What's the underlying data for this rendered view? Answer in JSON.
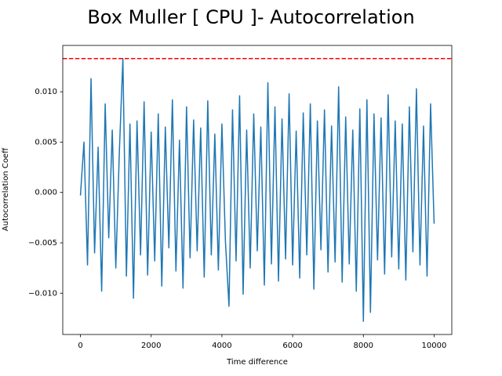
{
  "chart_data": {
    "type": "line",
    "title": "Box Muller [ CPU ]- Autocorrelation",
    "x_label": "Time difference",
    "y_label": "Autocorrelation Coeff",
    "x": [
      0,
      100,
      200,
      300,
      400,
      500,
      600,
      700,
      800,
      900,
      1000,
      1100,
      1200,
      1300,
      1400,
      1500,
      1600,
      1700,
      1800,
      1900,
      2000,
      2100,
      2200,
      2300,
      2400,
      2500,
      2600,
      2700,
      2800,
      2900,
      3000,
      3100,
      3200,
      3300,
      3400,
      3500,
      3600,
      3700,
      3800,
      3900,
      4000,
      4100,
      4200,
      4300,
      4400,
      4500,
      4600,
      4700,
      4800,
      4900,
      5000,
      5100,
      5200,
      5300,
      5400,
      5500,
      5600,
      5700,
      5800,
      5900,
      6000,
      6100,
      6200,
      6300,
      6400,
      6500,
      6600,
      6700,
      6800,
      6900,
      7000,
      7100,
      7200,
      7300,
      7400,
      7500,
      7600,
      7700,
      7800,
      7900,
      8000,
      8100,
      8200,
      8300,
      8400,
      8500,
      8600,
      8700,
      8800,
      8900,
      9000,
      9100,
      9200,
      9300,
      9400,
      9500,
      9600,
      9700,
      9800,
      9900,
      10000
    ],
    "series": [
      {
        "color": "#1f77b4",
        "values": [
          -0.0003,
          0.005,
          -0.0072,
          0.0113,
          -0.006,
          0.0045,
          -0.0098,
          0.0088,
          -0.0045,
          0.0062,
          -0.0075,
          0.004,
          0.0133,
          -0.0083,
          0.0068,
          -0.0105,
          0.0071,
          -0.0062,
          0.009,
          -0.0082,
          0.006,
          -0.0068,
          0.0078,
          -0.0093,
          0.0065,
          -0.0055,
          0.0092,
          -0.0078,
          0.0052,
          -0.0095,
          0.0085,
          -0.0065,
          0.0072,
          -0.0058,
          0.0064,
          -0.0084,
          0.0091,
          -0.0062,
          0.0058,
          -0.0077,
          0.0068,
          -0.0049,
          -0.0113,
          0.0082,
          -0.0068,
          0.0096,
          -0.0101,
          0.0062,
          -0.0075,
          0.0078,
          -0.0058,
          0.0065,
          -0.0092,
          0.0109,
          -0.0071,
          0.0085,
          -0.0088,
          0.0073,
          -0.0066,
          0.0098,
          -0.0072,
          0.0061,
          -0.0085,
          0.0079,
          -0.0062,
          0.0088,
          -0.0096,
          0.0071,
          -0.0057,
          0.0082,
          -0.0079,
          0.0066,
          -0.0069,
          0.0105,
          -0.0089,
          0.0075,
          -0.0071,
          0.0062,
          -0.0098,
          0.0083,
          -0.0128,
          0.0092,
          -0.0119,
          0.0078,
          -0.0067,
          0.0074,
          -0.0081,
          0.0097,
          -0.0064,
          0.0071,
          -0.0076,
          0.0068,
          -0.0087,
          0.0085,
          -0.0059,
          0.0103,
          -0.0072,
          0.0066,
          -0.0083,
          0.0088,
          -0.0031
        ]
      }
    ],
    "threshold": {
      "value": 0.0133,
      "color": "#ff0000"
    },
    "xlim": [
      -500,
      10500
    ],
    "ylim": [
      -0.0141,
      0.0146
    ],
    "xticks": [
      0,
      2000,
      4000,
      6000,
      8000,
      10000
    ],
    "yticks": [
      {
        "value": -0.01,
        "label": "−0.010"
      },
      {
        "value": -0.005,
        "label": "−0.005"
      },
      {
        "value": 0,
        "label": "0.000"
      },
      {
        "value": 0.005,
        "label": "0.005"
      },
      {
        "value": 0.01,
        "label": "0.010"
      }
    ],
    "grid": false
  }
}
